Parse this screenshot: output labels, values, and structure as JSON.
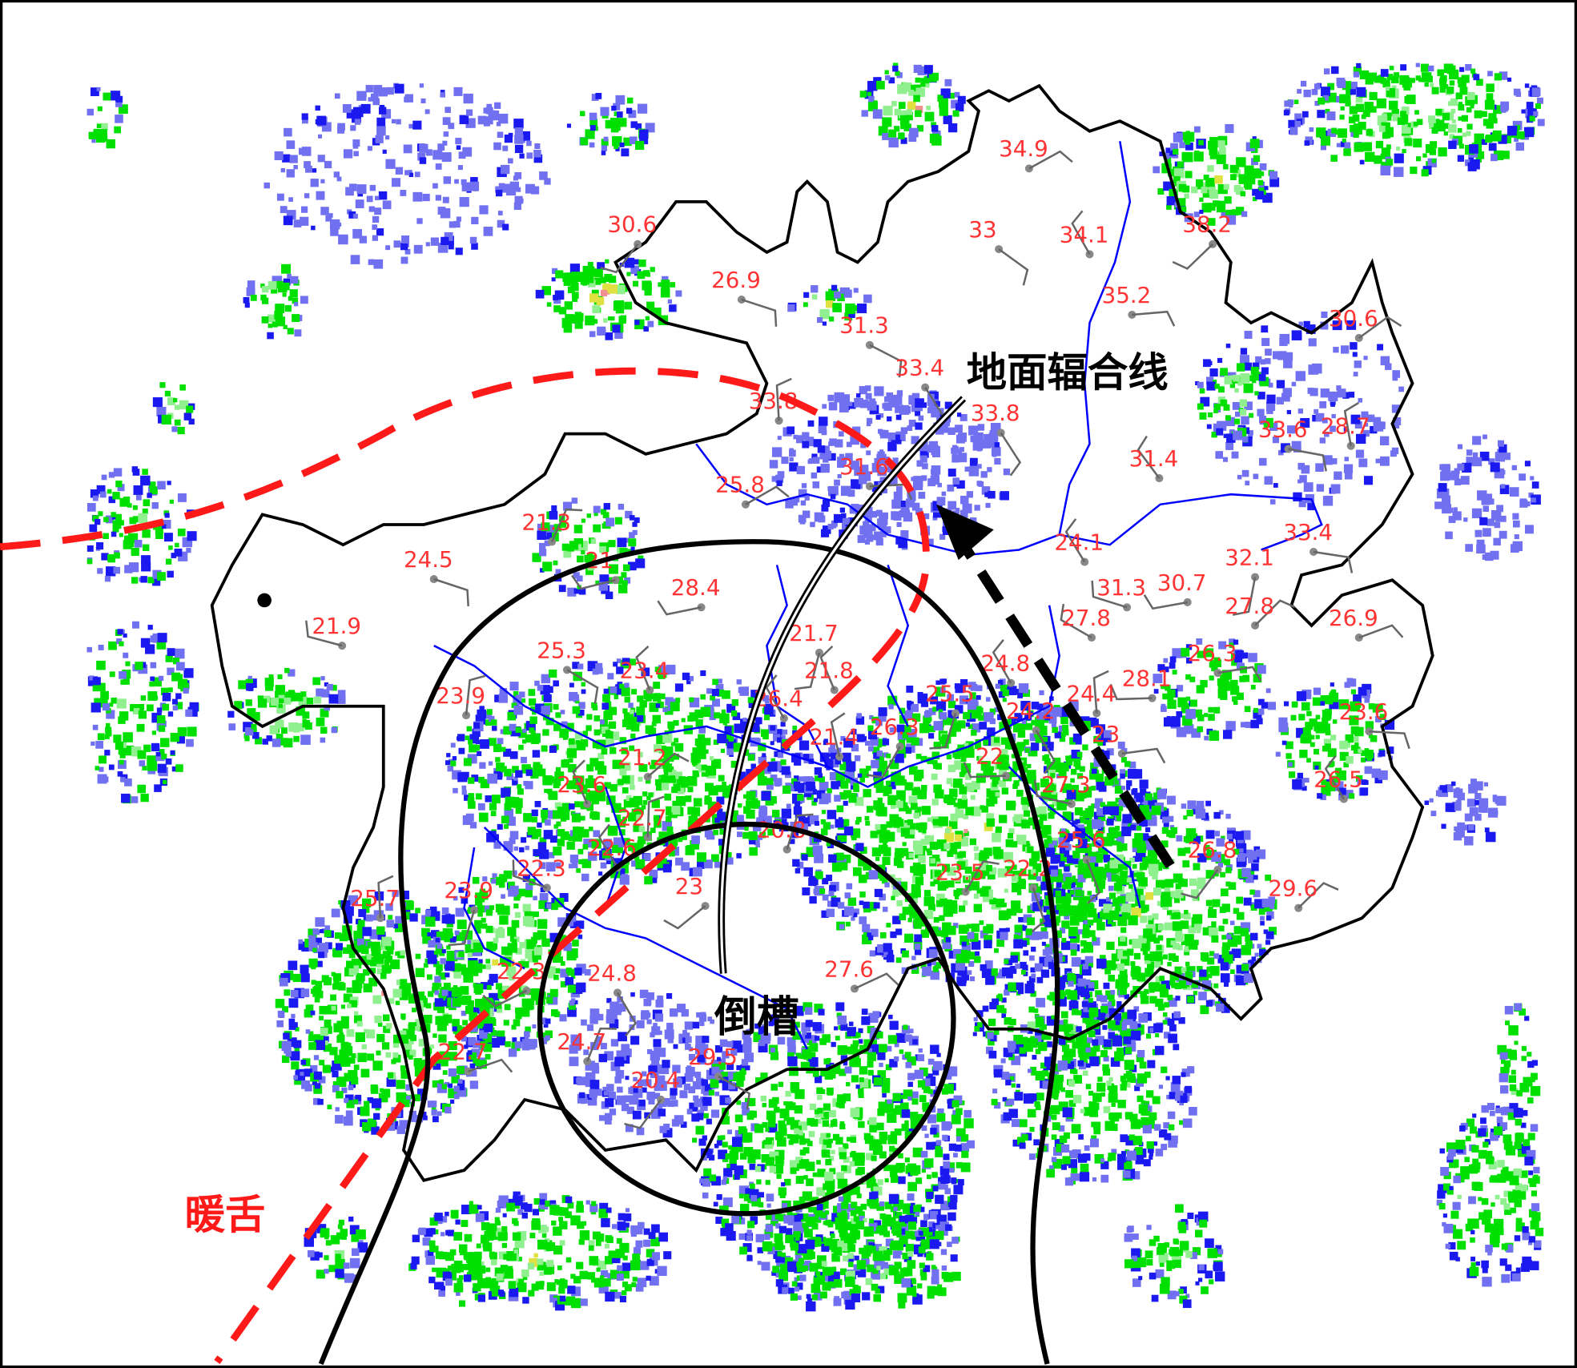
{
  "annotations": {
    "convergence_line_label": "地面辐合线",
    "inverted_trough_label": "倒槽",
    "warm_tongue_label": "暖舌"
  },
  "colors": {
    "warm_tongue": "#ff1a1a",
    "trough": "#000000",
    "province_border": "#000000",
    "county_border": "#0000ff",
    "station_text": "#ff3333",
    "wind_barb": "#666666",
    "radar": [
      "#7070f0",
      "#1a1af0",
      "#00e000",
      "#90f090",
      "#e0e040",
      "#f09090"
    ]
  },
  "stations": [
    {
      "t": "34.9"
    },
    {
      "t": "33"
    },
    {
      "t": "34.1"
    },
    {
      "t": "38.2"
    },
    {
      "t": "30.6"
    },
    {
      "t": "26.9"
    },
    {
      "t": "35.2"
    },
    {
      "t": "30.6"
    },
    {
      "t": "31.3"
    },
    {
      "t": "33.4"
    },
    {
      "t": "33.8"
    },
    {
      "t": "33.6"
    },
    {
      "t": "28.7"
    },
    {
      "t": "31.4"
    },
    {
      "t": "31.6"
    },
    {
      "t": "25.8"
    },
    {
      "t": "24.5"
    },
    {
      "t": "21.9"
    },
    {
      "t": "28.4"
    },
    {
      "t": "24.1"
    },
    {
      "t": "31.3"
    },
    {
      "t": "30.7"
    },
    {
      "t": "27.8"
    },
    {
      "t": "32.1"
    },
    {
      "t": "33.4"
    },
    {
      "t": "27.8"
    },
    {
      "t": "26.9"
    },
    {
      "t": "25.3"
    },
    {
      "t": "23.4"
    },
    {
      "t": "21.7"
    },
    {
      "t": "21.8"
    },
    {
      "t": "26.4"
    },
    {
      "t": "25.5"
    },
    {
      "t": "24.8"
    },
    {
      "t": "24.4"
    },
    {
      "t": "28.1"
    },
    {
      "t": "26.3"
    },
    {
      "t": "23.6"
    },
    {
      "t": "21.2"
    },
    {
      "t": "23.6"
    },
    {
      "t": "22.7"
    },
    {
      "t": "22.6"
    },
    {
      "t": "21.4"
    },
    {
      "t": "26.3"
    },
    {
      "t": "23"
    },
    {
      "t": "22"
    },
    {
      "t": "27.3"
    },
    {
      "t": "26.5"
    },
    {
      "t": "20.8"
    },
    {
      "t": "26.8"
    },
    {
      "t": "29.6"
    },
    {
      "t": "23.9"
    },
    {
      "t": "22.3"
    },
    {
      "t": "23"
    },
    {
      "t": "23.5"
    },
    {
      "t": "22.2"
    },
    {
      "t": "25.7"
    },
    {
      "t": "24.8"
    },
    {
      "t": "22.3"
    },
    {
      "t": "27.6"
    },
    {
      "t": "29.5"
    },
    {
      "t": "24.7"
    },
    {
      "t": "22.7"
    },
    {
      "t": "20.4"
    },
    {
      "t": "24.2"
    },
    {
      "t": "23.9"
    },
    {
      "t": "21"
    },
    {
      "t": "21.3"
    },
    {
      "t": "33.8"
    },
    {
      "t": "25.6"
    }
  ]
}
